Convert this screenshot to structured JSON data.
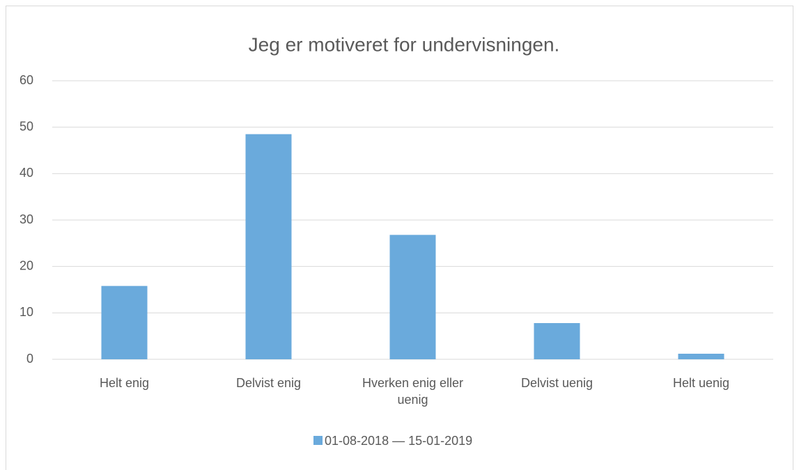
{
  "chart_data": {
    "type": "bar",
    "title": "Jeg er motiveret for undervisningen.",
    "categories": [
      "Helt enig",
      "Delvist enig",
      "Hverken enig eller uenig",
      "Delvist uenig",
      "Helt uenig"
    ],
    "series": [
      {
        "name": "01-08-2018 — 15-01-2019",
        "color": "#6aaadc",
        "values": [
          15.8,
          48.5,
          26.8,
          7.8,
          1.2
        ]
      }
    ],
    "ylim": [
      0,
      60
    ],
    "yticks": [
      0,
      10,
      20,
      30,
      40,
      50,
      60
    ],
    "grid": true,
    "legend": "bottom"
  }
}
